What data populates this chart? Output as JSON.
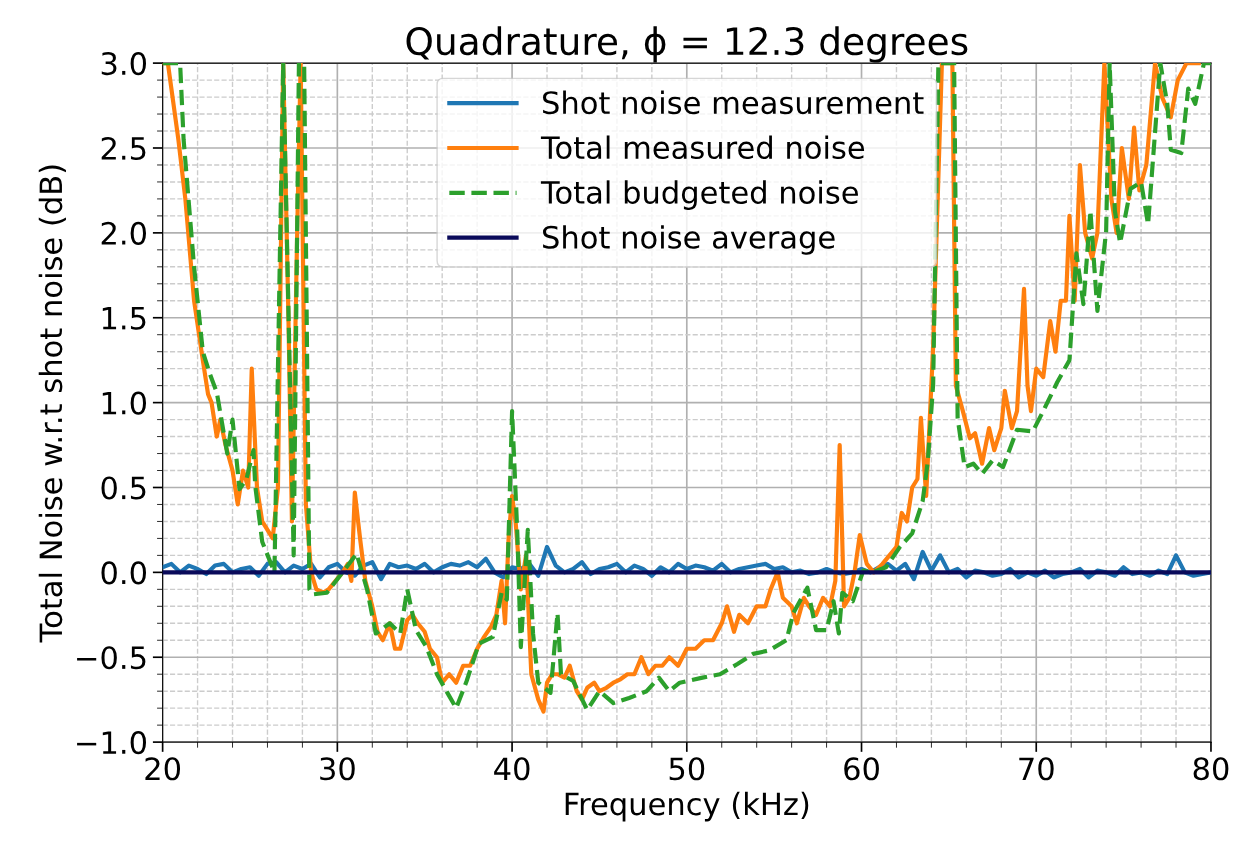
{
  "chart_data": {
    "type": "line",
    "title": "Quadrature, ϕ = 12.3 degrees",
    "xlabel": "Frequency (kHz)",
    "ylabel": "Total Noise w.r.t shot noise (dB)",
    "xlim": [
      20,
      80
    ],
    "xticks": [
      20,
      30,
      40,
      50,
      60,
      70,
      80
    ],
    "ylim": [
      -1.0,
      3.0
    ],
    "yticks": [
      {
        "value": -1.0,
        "label": "−1.0"
      },
      {
        "value": -0.5,
        "label": "−0.5"
      },
      {
        "value": 0.0,
        "label": "0.0"
      },
      {
        "value": 0.5,
        "label": "0.5"
      },
      {
        "value": 1.0,
        "label": "1.0"
      },
      {
        "value": 1.5,
        "label": "1.5"
      },
      {
        "value": 2.0,
        "label": "2.0"
      },
      {
        "value": 2.5,
        "label": "2.5"
      },
      {
        "value": 3.0,
        "label": "3.0"
      }
    ],
    "grid": true,
    "legend": "top",
    "marker": "none",
    "series": [
      {
        "name": "Shot noise measurement",
        "color": "#1f77b4",
        "line_style": "solid",
        "x": [
          20.0,
          20.5,
          21.0,
          21.5,
          22.0,
          22.5,
          23.0,
          23.5,
          24.0,
          24.5,
          25.0,
          25.5,
          26.0,
          26.5,
          27.0,
          27.5,
          28.0,
          28.5,
          29.0,
          29.5,
          30.0,
          30.5,
          31.0,
          31.5,
          32.0,
          32.5,
          33.0,
          33.5,
          34.0,
          34.5,
          35.0,
          35.5,
          36.0,
          36.5,
          37.0,
          37.5,
          38.0,
          38.5,
          39.0,
          39.5,
          40.0,
          40.5,
          41.0,
          41.5,
          42.0,
          42.5,
          43.0,
          43.5,
          44.0,
          44.5,
          45.0,
          45.5,
          46.0,
          46.5,
          47.0,
          47.5,
          48.0,
          48.5,
          49.0,
          49.5,
          50.0,
          50.5,
          51.0,
          51.5,
          52.0,
          52.5,
          53.0,
          53.5,
          54.0,
          54.5,
          55.0,
          55.5,
          56.0,
          56.5,
          57.0,
          57.5,
          58.0,
          58.5,
          59.0,
          59.5,
          60.0,
          60.5,
          61.0,
          61.5,
          62.0,
          62.5,
          63.0,
          63.5,
          64.0,
          64.5,
          65.0,
          65.5,
          66.0,
          66.5,
          67.0,
          67.5,
          68.0,
          68.5,
          69.0,
          69.5,
          70.0,
          70.5,
          71.0,
          71.5,
          72.0,
          72.5,
          73.0,
          73.5,
          74.0,
          74.5,
          75.0,
          75.5,
          76.0,
          76.5,
          77.0,
          77.5,
          78.0,
          78.5,
          79.0,
          79.5,
          80.0
        ],
        "values": [
          0.03,
          0.05,
          0.0,
          0.04,
          0.02,
          -0.01,
          0.04,
          0.05,
          0.0,
          0.02,
          0.03,
          -0.02,
          0.05,
          0.06,
          0.0,
          0.04,
          0.02,
          0.05,
          -0.03,
          0.03,
          0.05,
          0.0,
          -0.02,
          0.04,
          0.06,
          -0.04,
          0.05,
          0.03,
          0.04,
          0.02,
          0.05,
          0.0,
          0.03,
          0.05,
          0.04,
          0.06,
          0.03,
          0.08,
          0.0,
          -0.03,
          0.03,
          0.02,
          0.05,
          -0.02,
          0.15,
          0.04,
          0.0,
          0.02,
          0.06,
          -0.01,
          0.02,
          0.03,
          0.05,
          0.0,
          0.04,
          0.02,
          -0.02,
          0.03,
          0.0,
          0.05,
          0.02,
          0.04,
          0.03,
          0.01,
          0.05,
          0.0,
          0.02,
          0.03,
          0.04,
          0.05,
          0.02,
          0.03,
          0.0,
          0.01,
          -0.01,
          0.0,
          0.02,
          0.0,
          -0.01,
          0.0,
          0.02,
          0.0,
          0.03,
          0.05,
          0.01,
          0.05,
          -0.04,
          0.12,
          0.01,
          0.1,
          0.0,
          0.02,
          -0.03,
          0.01,
          0.0,
          -0.02,
          -0.01,
          0.02,
          -0.03,
          0.0,
          -0.02,
          0.01,
          -0.03,
          -0.01,
          0.0,
          0.02,
          -0.03,
          0.01,
          0.0,
          -0.02,
          0.03,
          -0.01,
          0.0,
          -0.02,
          0.01,
          -0.01,
          0.1,
          0.0,
          -0.02,
          -0.01,
          0.0
        ]
      },
      {
        "name": "Total measured noise",
        "color": "#ff7f0e",
        "line_style": "solid",
        "x": [
          20.0,
          20.3,
          20.5,
          20.9,
          21.3,
          21.8,
          22.3,
          22.6,
          22.8,
          23.1,
          23.3,
          23.6,
          24.0,
          24.3,
          24.6,
          24.9,
          25.1,
          25.4,
          25.7,
          26.0,
          26.3,
          26.6,
          26.9,
          27.2,
          27.4,
          27.7,
          27.9,
          28.2,
          28.5,
          28.8,
          29.2,
          29.5,
          29.9,
          30.3,
          30.6,
          30.8,
          31.0,
          31.3,
          31.6,
          32.0,
          32.3,
          32.6,
          33.0,
          33.3,
          33.6,
          34.0,
          34.3,
          34.6,
          35.0,
          35.3,
          35.7,
          36.0,
          36.4,
          36.8,
          37.2,
          37.6,
          38.0,
          38.4,
          38.8,
          39.1,
          39.4,
          39.6,
          39.8,
          40.0,
          40.2,
          40.5,
          40.8,
          41.1,
          41.5,
          41.8,
          42.0,
          42.3,
          42.6,
          43.0,
          43.3,
          43.7,
          44.0,
          44.3,
          44.7,
          45.0,
          45.4,
          45.8,
          46.2,
          46.6,
          47.0,
          47.4,
          47.8,
          48.2,
          48.6,
          49.0,
          49.5,
          50.0,
          50.5,
          51.0,
          51.5,
          52.0,
          52.3,
          52.7,
          53.0,
          53.5,
          54.0,
          54.5,
          54.8,
          55.2,
          55.5,
          56.0,
          56.3,
          56.7,
          57.0,
          57.4,
          57.8,
          58.2,
          58.5,
          58.75,
          59.0,
          59.3,
          59.6,
          59.9,
          60.3,
          60.7,
          61.2,
          61.6,
          62.0,
          62.3,
          62.6,
          62.9,
          63.2,
          63.4,
          63.7,
          64.1,
          64.6,
          65.2,
          65.4,
          65.8,
          66.2,
          66.5,
          66.9,
          67.3,
          67.6,
          68.0,
          68.2,
          68.6,
          68.9,
          69.3,
          69.5,
          69.7,
          70.0,
          70.4,
          70.8,
          71.1,
          71.4,
          71.7,
          71.9,
          72.2,
          72.5,
          72.8,
          73.2,
          73.5,
          73.9,
          74.3,
          74.6,
          74.9,
          75.3,
          75.6,
          75.9,
          76.3,
          76.8,
          77.2,
          77.7,
          78.1,
          78.6,
          79.3
        ],
        "values": [
          3.0,
          3.0,
          2.85,
          2.55,
          2.2,
          1.6,
          1.25,
          1.05,
          1.0,
          0.8,
          0.9,
          0.75,
          0.6,
          0.4,
          0.6,
          0.5,
          1.2,
          0.5,
          0.3,
          0.25,
          0.2,
          0.5,
          3.0,
          1.5,
          0.3,
          2.0,
          3.0,
          0.4,
          0.0,
          -0.1,
          -0.12,
          -0.1,
          -0.05,
          0.0,
          0.05,
          -0.05,
          0.47,
          0.2,
          -0.05,
          -0.2,
          -0.35,
          -0.4,
          -0.3,
          -0.45,
          -0.45,
          -0.28,
          -0.25,
          -0.3,
          -0.35,
          -0.45,
          -0.5,
          -0.65,
          -0.6,
          -0.65,
          -0.55,
          -0.55,
          -0.45,
          -0.38,
          -0.32,
          -0.25,
          -0.05,
          -0.3,
          0.2,
          0.45,
          0.3,
          -0.1,
          0.1,
          -0.6,
          -0.75,
          -0.82,
          -0.65,
          -0.6,
          -0.6,
          -0.62,
          -0.55,
          -0.7,
          -0.75,
          -0.68,
          -0.65,
          -0.7,
          -0.68,
          -0.65,
          -0.63,
          -0.6,
          -0.6,
          -0.5,
          -0.6,
          -0.55,
          -0.55,
          -0.5,
          -0.55,
          -0.45,
          -0.45,
          -0.4,
          -0.4,
          -0.3,
          -0.2,
          -0.35,
          -0.25,
          -0.3,
          -0.2,
          -0.2,
          -0.1,
          0.0,
          -0.15,
          -0.2,
          -0.3,
          -0.15,
          -0.2,
          -0.25,
          -0.15,
          -0.2,
          -0.05,
          0.75,
          -0.2,
          -0.15,
          0.0,
          0.22,
          0.05,
          0.0,
          0.05,
          0.1,
          0.15,
          0.35,
          0.3,
          0.5,
          0.55,
          0.91,
          0.45,
          1.33,
          3.0,
          3.0,
          1.1,
          0.95,
          0.79,
          0.82,
          0.64,
          0.85,
          0.72,
          0.85,
          1.07,
          0.85,
          0.95,
          1.67,
          1.1,
          0.95,
          1.2,
          1.15,
          1.48,
          1.3,
          1.6,
          1.6,
          2.1,
          1.6,
          2.4,
          2.0,
          1.85,
          2.0,
          3.0,
          2.2,
          2.0,
          2.5,
          2.2,
          2.62,
          2.25,
          2.4,
          3.0,
          2.8,
          2.68,
          2.9,
          3.0,
          3.0
        ]
      },
      {
        "name": "Total budgeted noise",
        "color": "#2ca02c",
        "line_style": "dashed",
        "x": [
          20.0,
          21.0,
          21.2,
          21.8,
          22.3,
          22.7,
          23.1,
          23.7,
          24.0,
          24.4,
          24.8,
          25.2,
          25.3,
          25.7,
          26.4,
          26.9,
          27.5,
          27.8,
          28.1,
          28.4,
          28.6,
          29.4,
          30.3,
          31.1,
          31.7,
          32.2,
          33.0,
          33.6,
          34.0,
          34.5,
          35.1,
          35.7,
          36.3,
          36.8,
          37.4,
          38.1,
          38.9,
          39.4,
          39.7,
          40.0,
          40.3,
          40.5,
          40.9,
          41.2,
          41.5,
          42.2,
          42.6,
          42.8,
          43.5,
          44.3,
          45.0,
          45.8,
          46.7,
          47.7,
          48.4,
          49.0,
          49.6,
          50.9,
          51.9,
          52.9,
          53.8,
          54.7,
          55.7,
          56.1,
          56.9,
          57.4,
          58.0,
          58.4,
          58.7,
          58.9,
          59.5,
          60.1,
          60.6,
          61.4,
          62.2,
          62.9,
          63.5,
          63.8,
          64.1,
          64.4,
          65.3,
          65.5,
          65.9,
          66.4,
          66.9,
          67.5,
          68.1,
          68.9,
          69.8,
          70.4,
          71.2,
          71.9,
          72.3,
          72.7,
          73.1,
          73.5,
          74.0,
          74.2,
          74.5,
          74.8,
          75.4,
          76.0,
          76.4,
          77.1,
          77.5,
          77.7,
          78.3,
          78.7,
          79.1,
          79.6,
          80.0
        ],
        "values": [
          3.0,
          3.0,
          2.55,
          1.8,
          1.3,
          1.17,
          1.06,
          0.7,
          0.9,
          0.49,
          0.55,
          0.72,
          0.51,
          0.18,
          0.0,
          3.0,
          0.1,
          3.0,
          3.0,
          -0.1,
          -0.13,
          -0.12,
          0.0,
          0.11,
          -0.1,
          -0.36,
          -0.3,
          -0.36,
          -0.1,
          -0.34,
          -0.44,
          -0.6,
          -0.71,
          -0.8,
          -0.64,
          -0.42,
          -0.38,
          -0.12,
          -0.16,
          0.95,
          0.23,
          -0.44,
          0.25,
          -0.36,
          -0.65,
          -0.71,
          -0.24,
          -0.6,
          -0.64,
          -0.81,
          -0.7,
          -0.77,
          -0.74,
          -0.7,
          -0.62,
          -0.7,
          -0.65,
          -0.62,
          -0.6,
          -0.54,
          -0.48,
          -0.46,
          -0.4,
          -0.24,
          -0.09,
          -0.34,
          -0.34,
          -0.17,
          -0.36,
          -0.12,
          -0.17,
          0.01,
          0.0,
          0.03,
          0.15,
          0.23,
          0.42,
          0.66,
          1.11,
          3.0,
          3.0,
          0.91,
          0.62,
          0.64,
          0.58,
          0.66,
          0.62,
          0.84,
          0.83,
          0.95,
          1.12,
          1.25,
          1.88,
          1.58,
          2.13,
          1.54,
          2.01,
          3.0,
          2.13,
          1.94,
          2.26,
          2.3,
          2.05,
          3.0,
          2.76,
          2.49,
          2.47,
          2.85,
          2.76,
          3.0,
          3.0
        ]
      },
      {
        "name": "Shot noise average",
        "color": "#0a0a5a",
        "line_style": "solid",
        "x": [
          20,
          80
        ],
        "values": [
          0.0,
          0.0
        ]
      }
    ]
  }
}
